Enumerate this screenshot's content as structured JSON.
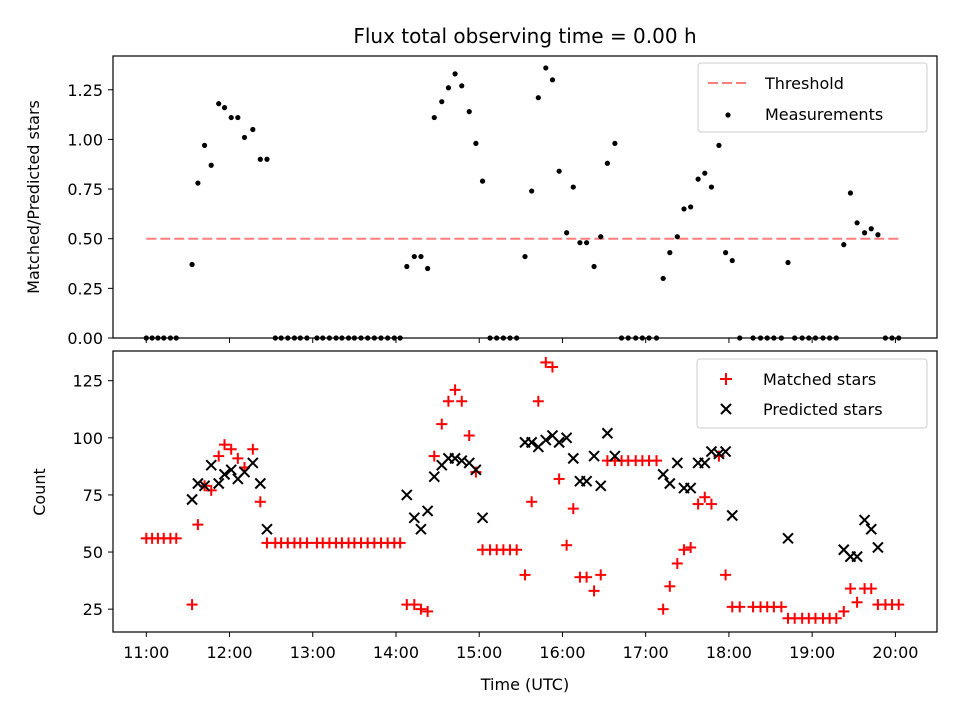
{
  "chart_data": [
    {
      "type": "scatter",
      "title": "Flux total observing time = 0.00 h",
      "xlabel": "",
      "ylabel": "Matched/Predicted stars",
      "ylim": [
        0,
        1.42
      ],
      "yticks": [
        "0.00",
        "0.25",
        "0.50",
        "0.75",
        "1.00",
        "1.25"
      ],
      "legend_position": "top-right",
      "threshold": {
        "label": "Threshold",
        "value": 0.5,
        "x_start": 11.0,
        "x_end": 20.05,
        "color": "#ff7f7f"
      },
      "series": [
        {
          "name": "Measurements",
          "color": "#000000",
          "marker": "dot",
          "points": [
            [
              11.0,
              0
            ],
            [
              11.07,
              0
            ],
            [
              11.14,
              0
            ],
            [
              11.21,
              0
            ],
            [
              11.29,
              0
            ],
            [
              11.36,
              0
            ],
            [
              11.55,
              0.37
            ],
            [
              11.62,
              0.78
            ],
            [
              11.7,
              0.97
            ],
            [
              11.78,
              0.87
            ],
            [
              11.87,
              1.18
            ],
            [
              11.94,
              1.16
            ],
            [
              12.02,
              1.11
            ],
            [
              12.1,
              1.11
            ],
            [
              12.18,
              1.01
            ],
            [
              12.28,
              1.05
            ],
            [
              12.37,
              0.9
            ],
            [
              12.45,
              0.9
            ],
            [
              12.55,
              0
            ],
            [
              12.62,
              0
            ],
            [
              12.7,
              0
            ],
            [
              12.78,
              0
            ],
            [
              12.85,
              0
            ],
            [
              12.93,
              0
            ],
            [
              13.05,
              0
            ],
            [
              13.12,
              0
            ],
            [
              13.2,
              0
            ],
            [
              13.28,
              0
            ],
            [
              13.35,
              0
            ],
            [
              13.43,
              0
            ],
            [
              13.5,
              0
            ],
            [
              13.58,
              0
            ],
            [
              13.66,
              0
            ],
            [
              13.74,
              0
            ],
            [
              13.82,
              0
            ],
            [
              13.9,
              0
            ],
            [
              13.98,
              0
            ],
            [
              14.05,
              0
            ],
            [
              14.13,
              0.36
            ],
            [
              14.22,
              0.41
            ],
            [
              14.3,
              0.41
            ],
            [
              14.38,
              0.35
            ],
            [
              14.46,
              1.11
            ],
            [
              14.55,
              1.19
            ],
            [
              14.63,
              1.26
            ],
            [
              14.71,
              1.33
            ],
            [
              14.79,
              1.27
            ],
            [
              14.88,
              1.14
            ],
            [
              14.96,
              0.98
            ],
            [
              15.04,
              0.79
            ],
            [
              15.13,
              0
            ],
            [
              15.21,
              0
            ],
            [
              15.29,
              0
            ],
            [
              15.37,
              0
            ],
            [
              15.45,
              0
            ],
            [
              15.55,
              0.41
            ],
            [
              15.63,
              0.74
            ],
            [
              15.71,
              1.21
            ],
            [
              15.8,
              1.36
            ],
            [
              15.88,
              1.3
            ],
            [
              15.96,
              0.84
            ],
            [
              16.05,
              0.53
            ],
            [
              16.13,
              0.76
            ],
            [
              16.21,
              0.48
            ],
            [
              16.29,
              0.48
            ],
            [
              16.38,
              0.36
            ],
            [
              16.46,
              0.51
            ],
            [
              16.54,
              0.88
            ],
            [
              16.63,
              0.98
            ],
            [
              16.71,
              0
            ],
            [
              16.79,
              0
            ],
            [
              16.88,
              0
            ],
            [
              16.96,
              0
            ],
            [
              17.04,
              0
            ],
            [
              17.13,
              0
            ],
            [
              17.21,
              0.3
            ],
            [
              17.29,
              0.43
            ],
            [
              17.38,
              0.51
            ],
            [
              17.46,
              0.65
            ],
            [
              17.54,
              0.66
            ],
            [
              17.63,
              0.8
            ],
            [
              17.71,
              0.83
            ],
            [
              17.79,
              0.76
            ],
            [
              17.88,
              0.97
            ],
            [
              17.96,
              0.43
            ],
            [
              18.04,
              0.39
            ],
            [
              18.13,
              0
            ],
            [
              18.29,
              0
            ],
            [
              18.38,
              0
            ],
            [
              18.46,
              0
            ],
            [
              18.54,
              0
            ],
            [
              18.63,
              0
            ],
            [
              18.71,
              0.38
            ],
            [
              18.79,
              0
            ],
            [
              18.88,
              0
            ],
            [
              18.96,
              0
            ],
            [
              19.04,
              0
            ],
            [
              19.13,
              0
            ],
            [
              19.21,
              0
            ],
            [
              19.29,
              0
            ],
            [
              19.38,
              0.47
            ],
            [
              19.46,
              0.73
            ],
            [
              19.54,
              0.58
            ],
            [
              19.63,
              0.53
            ],
            [
              19.71,
              0.55
            ],
            [
              19.79,
              0.52
            ],
            [
              19.88,
              0
            ],
            [
              19.96,
              0
            ],
            [
              20.04,
              0
            ]
          ]
        }
      ]
    },
    {
      "type": "scatter",
      "title": "",
      "xlabel": "Time (UTC)",
      "ylabel": "Count",
      "ylim": [
        15,
        138
      ],
      "xlim": [
        10.6,
        20.5
      ],
      "yticks": [
        "25",
        "50",
        "75",
        "100",
        "125"
      ],
      "xticks": [
        "11:00",
        "12:00",
        "13:00",
        "14:00",
        "15:00",
        "16:00",
        "17:00",
        "18:00",
        "19:00",
        "20:00"
      ],
      "legend_position": "top-right",
      "series": [
        {
          "name": "Matched stars",
          "color": "#ff0000",
          "marker": "plus",
          "points": [
            [
              11.0,
              56
            ],
            [
              11.07,
              56
            ],
            [
              11.14,
              56
            ],
            [
              11.21,
              56
            ],
            [
              11.29,
              56
            ],
            [
              11.36,
              56
            ],
            [
              11.55,
              27
            ],
            [
              11.62,
              62
            ],
            [
              11.7,
              79
            ],
            [
              11.78,
              77
            ],
            [
              11.87,
              92
            ],
            [
              11.94,
              97
            ],
            [
              12.02,
              95
            ],
            [
              12.1,
              91
            ],
            [
              12.18,
              87
            ],
            [
              12.28,
              95
            ],
            [
              12.37,
              72
            ],
            [
              12.45,
              54
            ],
            [
              12.55,
              54
            ],
            [
              12.62,
              54
            ],
            [
              12.7,
              54
            ],
            [
              12.78,
              54
            ],
            [
              12.85,
              54
            ],
            [
              12.93,
              54
            ],
            [
              13.05,
              54
            ],
            [
              13.12,
              54
            ],
            [
              13.2,
              54
            ],
            [
              13.28,
              54
            ],
            [
              13.35,
              54
            ],
            [
              13.43,
              54
            ],
            [
              13.5,
              54
            ],
            [
              13.58,
              54
            ],
            [
              13.66,
              54
            ],
            [
              13.74,
              54
            ],
            [
              13.82,
              54
            ],
            [
              13.9,
              54
            ],
            [
              13.98,
              54
            ],
            [
              14.05,
              54
            ],
            [
              14.13,
              27
            ],
            [
              14.22,
              27
            ],
            [
              14.3,
              25
            ],
            [
              14.38,
              24
            ],
            [
              14.46,
              92
            ],
            [
              14.55,
              106
            ],
            [
              14.63,
              116
            ],
            [
              14.71,
              121
            ],
            [
              14.79,
              116
            ],
            [
              14.88,
              101
            ],
            [
              14.96,
              85
            ],
            [
              15.04,
              51
            ],
            [
              15.13,
              51
            ],
            [
              15.21,
              51
            ],
            [
              15.29,
              51
            ],
            [
              15.37,
              51
            ],
            [
              15.45,
              51
            ],
            [
              15.55,
              40
            ],
            [
              15.63,
              72
            ],
            [
              15.71,
              116
            ],
            [
              15.8,
              133
            ],
            [
              15.88,
              131
            ],
            [
              15.96,
              82
            ],
            [
              16.05,
              53
            ],
            [
              16.13,
              69
            ],
            [
              16.21,
              39
            ],
            [
              16.29,
              39
            ],
            [
              16.38,
              33
            ],
            [
              16.46,
              40
            ],
            [
              16.54,
              90
            ],
            [
              16.63,
              90
            ],
            [
              16.71,
              90
            ],
            [
              16.79,
              90
            ],
            [
              16.88,
              90
            ],
            [
              16.96,
              90
            ],
            [
              17.04,
              90
            ],
            [
              17.13,
              90
            ],
            [
              17.21,
              25
            ],
            [
              17.29,
              35
            ],
            [
              17.38,
              45
            ],
            [
              17.46,
              51
            ],
            [
              17.54,
              52
            ],
            [
              17.63,
              71
            ],
            [
              17.71,
              74
            ],
            [
              17.79,
              71
            ],
            [
              17.88,
              92
            ],
            [
              17.96,
              40
            ],
            [
              18.04,
              26
            ],
            [
              18.13,
              26
            ],
            [
              18.29,
              26
            ],
            [
              18.38,
              26
            ],
            [
              18.46,
              26
            ],
            [
              18.54,
              26
            ],
            [
              18.63,
              26
            ],
            [
              18.71,
              21
            ],
            [
              18.79,
              21
            ],
            [
              18.88,
              21
            ],
            [
              18.96,
              21
            ],
            [
              19.04,
              21
            ],
            [
              19.13,
              21
            ],
            [
              19.21,
              21
            ],
            [
              19.29,
              21
            ],
            [
              19.38,
              24
            ],
            [
              19.46,
              34
            ],
            [
              19.54,
              28
            ],
            [
              19.63,
              34
            ],
            [
              19.71,
              34
            ],
            [
              19.79,
              27
            ],
            [
              19.88,
              27
            ],
            [
              19.96,
              27
            ],
            [
              20.04,
              27
            ]
          ]
        },
        {
          "name": "Predicted stars",
          "color": "#000000",
          "marker": "x",
          "points": [
            [
              11.55,
              73
            ],
            [
              11.62,
              80
            ],
            [
              11.7,
              79
            ],
            [
              11.78,
              88
            ],
            [
              11.87,
              80
            ],
            [
              11.94,
              84
            ],
            [
              12.02,
              86
            ],
            [
              12.1,
              82
            ],
            [
              12.18,
              85
            ],
            [
              12.28,
              89
            ],
            [
              12.37,
              80
            ],
            [
              12.45,
              60
            ],
            [
              14.13,
              75
            ],
            [
              14.22,
              65
            ],
            [
              14.3,
              60
            ],
            [
              14.38,
              68
            ],
            [
              14.46,
              83
            ],
            [
              14.55,
              88
            ],
            [
              14.63,
              91
            ],
            [
              14.71,
              91
            ],
            [
              14.79,
              90
            ],
            [
              14.88,
              89
            ],
            [
              14.96,
              86
            ],
            [
              15.04,
              65
            ],
            [
              15.55,
              98
            ],
            [
              15.63,
              98
            ],
            [
              15.71,
              96
            ],
            [
              15.8,
              99
            ],
            [
              15.88,
              101
            ],
            [
              15.96,
              98
            ],
            [
              16.05,
              100
            ],
            [
              16.13,
              91
            ],
            [
              16.21,
              81
            ],
            [
              16.29,
              81
            ],
            [
              16.38,
              92
            ],
            [
              16.46,
              79
            ],
            [
              16.54,
              102
            ],
            [
              16.63,
              92
            ],
            [
              17.21,
              84
            ],
            [
              17.29,
              80
            ],
            [
              17.38,
              89
            ],
            [
              17.46,
              78
            ],
            [
              17.54,
              78
            ],
            [
              17.63,
              89
            ],
            [
              17.71,
              89
            ],
            [
              17.79,
              94
            ],
            [
              17.88,
              93
            ],
            [
              17.96,
              94
            ],
            [
              18.04,
              66
            ],
            [
              18.71,
              56
            ],
            [
              19.38,
              51
            ],
            [
              19.46,
              48
            ],
            [
              19.54,
              48
            ],
            [
              19.63,
              64
            ],
            [
              19.71,
              60
            ],
            [
              19.79,
              52
            ]
          ]
        }
      ]
    }
  ]
}
